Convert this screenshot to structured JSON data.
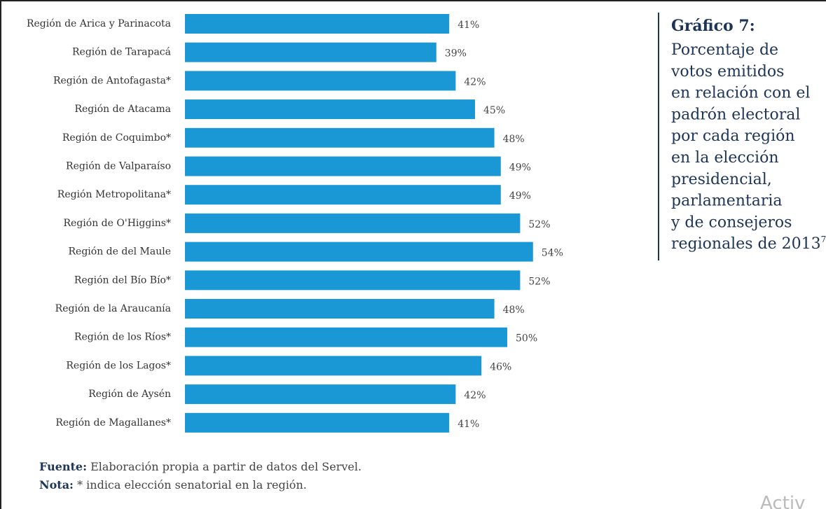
{
  "chart_data": {
    "type": "bar",
    "orientation": "horizontal",
    "title": "Gráfico 7:",
    "subtitle_lines": [
      "Porcentaje de",
      "votos emitidos",
      "en relación con el",
      "padrón electoral",
      "por cada región",
      "en la elección",
      "presidencial,",
      "parlamentaria",
      "y de consejeros",
      "regionales de 2013"
    ],
    "subtitle_footnote_marker": "7",
    "categories": [
      "Región de Arica y Parinacota",
      "Región de Tarapacá",
      "Región de Antofagasta*",
      "Región de Atacama",
      "Región de Coquimbo*",
      "Región de Valparaíso",
      "Región Metropolitana*",
      "Región de O'Higgins*",
      "Región de del Maule",
      "Región del Bío Bío*",
      "Región de la Araucanía",
      "Región de los Ríos*",
      "Región de los Lagos*",
      "Región de Aysén",
      "Región de Magallanes*"
    ],
    "values": [
      41,
      39,
      42,
      45,
      48,
      49,
      49,
      52,
      54,
      52,
      48,
      50,
      46,
      42,
      41
    ],
    "value_labels": [
      "41%",
      "39%",
      "42%",
      "45%",
      "48%",
      "49%",
      "49%",
      "52%",
      "54%",
      "52%",
      "48%",
      "50%",
      "46%",
      "42%",
      "41%"
    ],
    "color": "#1a98d5",
    "source_label": "Fuente:",
    "source_text": "Elaboración propia a partir de datos del Servel.",
    "note_label": "Nota:",
    "note_text": "* indica elección senatorial en la región.",
    "watermark": "Activ"
  }
}
